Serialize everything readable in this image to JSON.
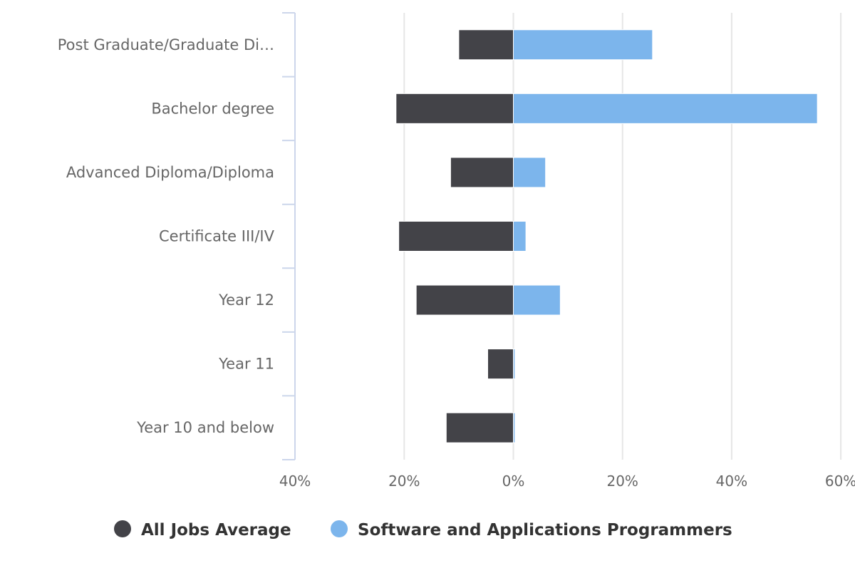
{
  "chart_data": {
    "type": "bar",
    "orientation": "horizontal-diverging",
    "categories": [
      "Post Graduate/Graduate Di…",
      "Bachelor degree",
      "Advanced Diploma/Diploma",
      "Certificate III/IV",
      "Year 12",
      "Year 11",
      "Year 10 and below"
    ],
    "series": [
      {
        "name": "All Jobs Average",
        "color": "#434348",
        "side": "left",
        "values": [
          10,
          21.5,
          11.5,
          21,
          17.8,
          4.7,
          12.3
        ]
      },
      {
        "name": "Software and Applications Programmers",
        "color": "#7cb5ec",
        "side": "right",
        "values": [
          25.5,
          55.7,
          5.9,
          2.3,
          8.6,
          0.3,
          0.3
        ]
      }
    ],
    "x_ticks": [
      "40%",
      "20%",
      "0%",
      "20%",
      "40%",
      "60%"
    ],
    "xlim": [
      -40,
      60
    ],
    "grid": true,
    "legend_position": "bottom-center"
  }
}
